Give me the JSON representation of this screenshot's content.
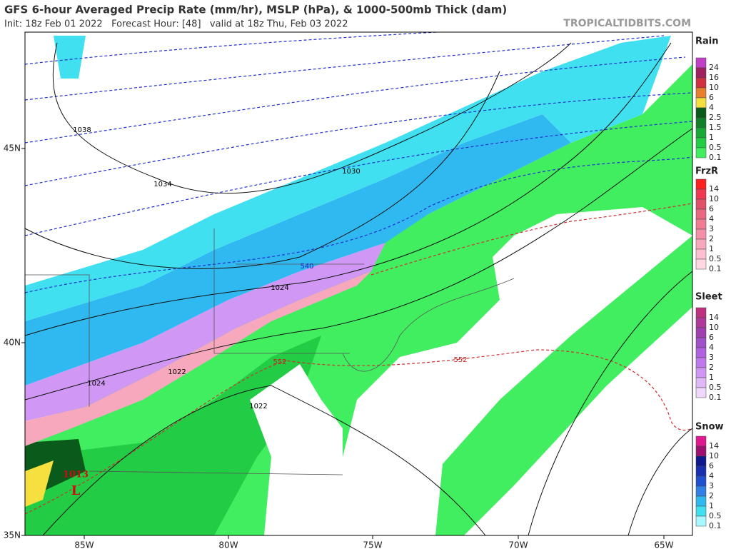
{
  "header": {
    "title": "GFS 6-hour Averaged Precip Rate (mm/hr), MSLP (hPa), & 1000-500mb Thick (dam)",
    "subtitle": "Init: 18z Feb 01 2022   Forecast Hour: [48]   valid at 18z Thu, Feb 03 2022",
    "brand": "TROPICALTIDBITS.COM"
  },
  "map": {
    "lon_labels": [
      "85W",
      "80W",
      "75W",
      "70W",
      "65W"
    ],
    "lat_labels": [
      "45N",
      "40N",
      "35N"
    ],
    "contour_labels": [
      {
        "text": "1038",
        "color": "#000000"
      },
      {
        "text": "1034",
        "color": "#000000"
      },
      {
        "text": "1030",
        "color": "#000000"
      },
      {
        "text": "1024",
        "color": "#000000"
      },
      {
        "text": "1024",
        "color": "#000000"
      },
      {
        "text": "1022",
        "color": "#000000"
      },
      {
        "text": "1022",
        "color": "#000000"
      },
      {
        "text": "540",
        "color": "#2020c0"
      },
      {
        "text": "552",
        "color": "#c02020"
      },
      {
        "text": "552",
        "color": "#c02020"
      },
      {
        "text": "1013",
        "color": "#c81010"
      },
      {
        "text": "L",
        "color": "#c81010"
      }
    ]
  },
  "legends": [
    {
      "title": "Rain",
      "levels": [
        {
          "label": "24",
          "color": "#c040c8"
        },
        {
          "label": "16",
          "color": "#a02060"
        },
        {
          "label": "10",
          "color": "#d03040"
        },
        {
          "label": "6",
          "color": "#e88030"
        },
        {
          "label": "4",
          "color": "#f5e040"
        },
        {
          "label": "2.5",
          "color": "#0a5a1c"
        },
        {
          "label": "1.5",
          "color": "#10802a"
        },
        {
          "label": "1",
          "color": "#18a838"
        },
        {
          "label": "0.5",
          "color": "#22cc44"
        },
        {
          "label": "0.1",
          "color": "#40ee60"
        }
      ]
    },
    {
      "title": "FrzR",
      "levels": [
        {
          "label": "14",
          "color": "#ff2020"
        },
        {
          "label": "10",
          "color": "#f03850"
        },
        {
          "label": "6",
          "color": "#e05068"
        },
        {
          "label": "4",
          "color": "#e86880"
        },
        {
          "label": "3",
          "color": "#f07c94"
        },
        {
          "label": "2",
          "color": "#f490a8"
        },
        {
          "label": "1",
          "color": "#f8a8bc"
        },
        {
          "label": "0.5",
          "color": "#fcc0d0"
        },
        {
          "label": "0.1",
          "color": "#ffd8e4"
        }
      ]
    },
    {
      "title": "Sleet",
      "levels": [
        {
          "label": "14",
          "color": "#c03080"
        },
        {
          "label": "10",
          "color": "#b03898"
        },
        {
          "label": "6",
          "color": "#a040b0"
        },
        {
          "label": "4",
          "color": "#a050c8"
        },
        {
          "label": "3",
          "color": "#b060e0"
        },
        {
          "label": "2",
          "color": "#c078ee"
        },
        {
          "label": "1",
          "color": "#d098f4"
        },
        {
          "label": "0.5",
          "color": "#e0b8f8"
        },
        {
          "label": "0.1",
          "color": "#f0d8fc"
        }
      ]
    },
    {
      "title": "Snow",
      "levels": [
        {
          "label": "14",
          "color": "#e01890"
        },
        {
          "label": "10",
          "color": "#a01070"
        },
        {
          "label": "6",
          "color": "#101890"
        },
        {
          "label": "4",
          "color": "#1830b0"
        },
        {
          "label": "3",
          "color": "#2050d0"
        },
        {
          "label": "2",
          "color": "#3080e8"
        },
        {
          "label": "1",
          "color": "#30b8f0"
        },
        {
          "label": "0.5",
          "color": "#40e0f0"
        },
        {
          "label": "0.1",
          "color": "#a8f8ff"
        }
      ]
    }
  ]
}
